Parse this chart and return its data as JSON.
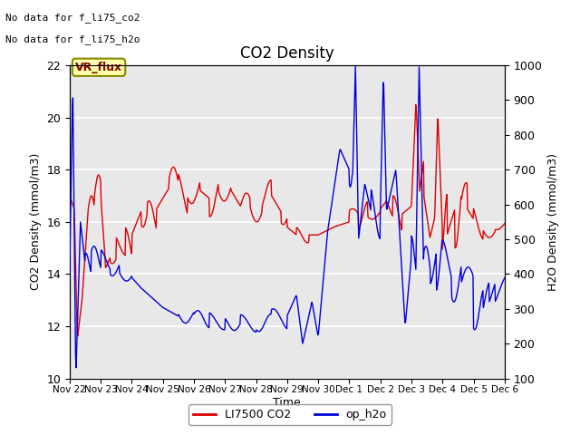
{
  "title": "CO2 Density",
  "xlabel": "Time",
  "ylabel_left": "CO2 Density (mmol/m3)",
  "ylabel_right": "H2O Density (mmol/m3)",
  "ylim_left": [
    10,
    22
  ],
  "ylim_right": [
    100,
    1000
  ],
  "text_no_data_1": "No data for f_li75_co2",
  "text_no_data_2": "No data for f_li75_h2o",
  "vr_flux_label": "VR_flux",
  "legend_entries": [
    "LI7500 CO2",
    "op_h2o"
  ],
  "legend_colors": [
    "#dd0000",
    "#0000dd"
  ],
  "figure_facecolor": "#ffffff",
  "plot_bg_color": "#e8e8e8",
  "xtick_labels": [
    "Nov 22",
    "Nov 23",
    "Nov 24",
    "Nov 25",
    "Nov 26",
    "Nov 27",
    "Nov 28",
    "Nov 29",
    "Nov 30",
    "Dec 1",
    "Dec 2",
    "Dec 3",
    "Dec 4",
    "Dec 5",
    "Dec 6"
  ],
  "red_line_color": "#dd0000",
  "blue_line_color": "#0000dd",
  "grid_color": "#ffffff",
  "yticks_left": [
    10,
    12,
    14,
    16,
    18,
    20,
    22
  ],
  "yticks_right": [
    100,
    200,
    300,
    400,
    500,
    600,
    700,
    800,
    900,
    1000
  ]
}
